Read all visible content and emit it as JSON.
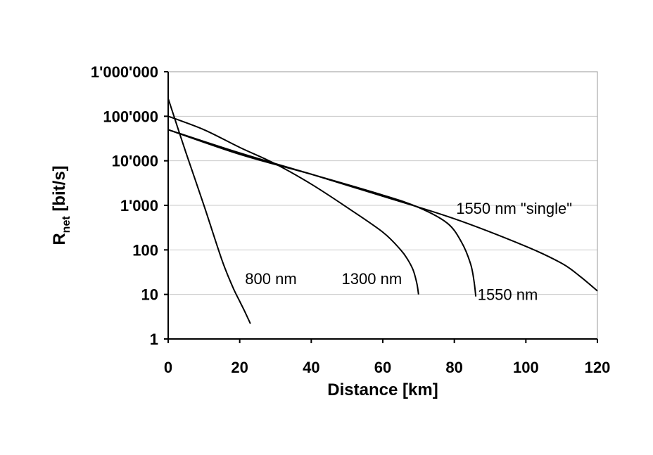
{
  "chart_data": {
    "type": "line",
    "title": "",
    "xlabel": "Distance [km]",
    "ylabel_main": "R",
    "ylabel_sub": "net",
    "ylabel_rest": " [bit/s]",
    "xlim": [
      0,
      120
    ],
    "ylim": [
      1,
      1000000
    ],
    "y_scale": "log",
    "grid": "horizontal",
    "x_ticks": [
      0,
      20,
      40,
      60,
      80,
      100,
      120
    ],
    "x_tick_labels": [
      "0",
      "20",
      "40",
      "60",
      "80",
      "100",
      "120"
    ],
    "y_ticks": [
      1,
      10,
      100,
      1000,
      10000,
      100000,
      1000000
    ],
    "y_tick_labels": [
      "1",
      "10",
      "100",
      "1'000",
      "10'000",
      "100'000",
      "1'000'000"
    ],
    "series": [
      {
        "name": "800 nm",
        "x": [
          0,
          5,
          10,
          15,
          18,
          20,
          21.5,
          23
        ],
        "y": [
          250000,
          15000,
          1000,
          60,
          15,
          7,
          4,
          2.2
        ]
      },
      {
        "name": "1300 nm",
        "x": [
          0,
          10,
          20,
          30,
          40,
          50,
          60,
          65,
          67,
          68.5,
          69.5,
          70
        ],
        "y": [
          100000,
          50000,
          20000,
          8500,
          3000,
          900,
          250,
          100,
          60,
          35,
          18,
          10
        ]
      },
      {
        "name": "1550 nm",
        "x": [
          0,
          20,
          40,
          60,
          70,
          78,
          82,
          84.5,
          85.5,
          86
        ],
        "y": [
          50000,
          14000,
          5000,
          1700,
          900,
          400,
          150,
          50,
          20,
          9
        ]
      },
      {
        "name": "1550 nm \"single\"",
        "x": [
          0,
          20,
          40,
          60,
          80,
          100,
          110,
          115,
          120
        ],
        "y": [
          50000,
          15000,
          5000,
          1600,
          500,
          120,
          50,
          26,
          12
        ]
      }
    ],
    "annotations": [
      {
        "text": "800 nm",
        "x": 21.5,
        "y": 17
      },
      {
        "text": "1300 nm",
        "x": 48.5,
        "y": 17
      },
      {
        "text": "1550 nm",
        "x": 86.5,
        "y": 7.5
      },
      {
        "text": "1550 nm \"single\"",
        "x": 80.5,
        "y": 650
      }
    ]
  }
}
